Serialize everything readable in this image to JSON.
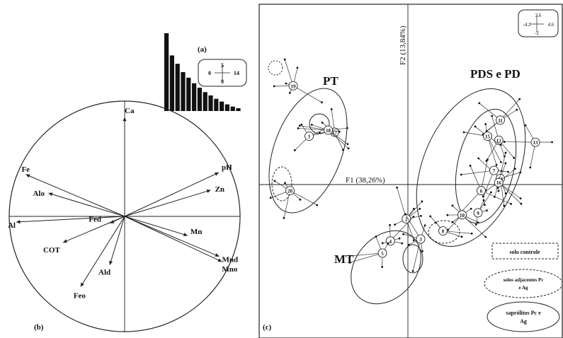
{
  "panel_a": {
    "label": "(a)",
    "scale_box": {
      "top": "5",
      "left": "0",
      "right": "14",
      "bottom": "0"
    }
  },
  "panel_b": {
    "label": "(b)",
    "variables": [
      {
        "name": "Ca",
        "angle_deg": 90,
        "length": 0.86
      },
      {
        "name": "Fe",
        "angle_deg": 157,
        "length": 0.93
      },
      {
        "name": "pH",
        "angle_deg": 25,
        "length": 0.9
      },
      {
        "name": "Alo",
        "angle_deg": 163,
        "length": 0.69
      },
      {
        "name": "Zn",
        "angle_deg": 17,
        "length": 0.78
      },
      {
        "name": "Al",
        "angle_deg": 183,
        "length": 0.94
      },
      {
        "name": "Fed",
        "angle_deg": 205,
        "length": 0.14
      },
      {
        "name": "COT",
        "angle_deg": 203,
        "length": 0.58
      },
      {
        "name": "Mn",
        "angle_deg": -17,
        "length": 0.57
      },
      {
        "name": "Mnd",
        "angle_deg": -23,
        "length": 0.89
      },
      {
        "name": "Mno",
        "angle_deg": -25,
        "length": 0.93
      },
      {
        "name": "Ald",
        "angle_deg": 253,
        "length": 0.44
      },
      {
        "name": "Feo",
        "angle_deg": 238,
        "length": 0.72
      }
    ]
  },
  "panel_c": {
    "label": "(c)",
    "axis_f1": "F1 (38,26%)",
    "axis_f2": "F2 (13,84%)",
    "scale_box": {
      "top": "3.6",
      "left": "-4.2",
      "right": "4.6",
      "bottom": "-2"
    },
    "groups": [
      "PT",
      "PDS e PD",
      "MT"
    ],
    "legend": {
      "control": "solo controle",
      "adjacent": "solos adjacentes Pc e Ag",
      "saprolite": "saprólitos Pc e Ag"
    },
    "sample_ids": [
      "1",
      "2",
      "3",
      "4",
      "5",
      "6",
      "7",
      "8",
      "9",
      "10",
      "11",
      "12",
      "13",
      "14",
      "15",
      "16",
      "17",
      "18",
      "19",
      "20"
    ]
  },
  "chart_data": [
    {
      "type": "bar",
      "title": "",
      "values": [
        14,
        10,
        8.5,
        7,
        6,
        5,
        4.2,
        3.4,
        2.8,
        2.2,
        1.7,
        1.2,
        0.8,
        0.5
      ],
      "ylim": [
        0,
        14
      ]
    },
    {
      "type": "scatter",
      "title": "",
      "xlabel": "F1 (38,26%)",
      "ylabel": "F2 (13,84%)",
      "xlim": [
        -4.2,
        4.6
      ],
      "ylim": [
        -2,
        3.6
      ],
      "points": [
        {
          "id": "1",
          "x": -3.1,
          "y": 1.2,
          "group": "PT"
        },
        {
          "id": "17",
          "x": -2.3,
          "y": 1.3,
          "group": "PT"
        },
        {
          "id": "18",
          "x": -2.5,
          "y": 1.35,
          "group": "PT"
        },
        {
          "id": "19",
          "x": -3.6,
          "y": 2.45,
          "group": "PT"
        },
        {
          "id": "20",
          "x": -3.7,
          "y": -0.15,
          "group": "PT"
        },
        {
          "id": "11",
          "x": 2.9,
          "y": 1.6,
          "group": "PDS e PD"
        },
        {
          "id": "12",
          "x": 2.85,
          "y": 1.1,
          "group": "PDS e PD"
        },
        {
          "id": "13",
          "x": 4.0,
          "y": 1.05,
          "group": "PDS e PD"
        },
        {
          "id": "14",
          "x": 2.9,
          "y": 0.15,
          "group": "PDS e PD"
        },
        {
          "id": "15",
          "x": 2.5,
          "y": 1.2,
          "group": "PDS e PD"
        },
        {
          "id": "16",
          "x": 2.85,
          "y": 0.05,
          "group": "PDS e PD"
        },
        {
          "id": "6",
          "x": 2.3,
          "y": -0.15,
          "group": "PDS e PD"
        },
        {
          "id": "7",
          "x": 2.7,
          "y": 0.35,
          "group": "PDS e PD"
        },
        {
          "id": "9",
          "x": 2.2,
          "y": -0.7,
          "group": "PDS e PD"
        },
        {
          "id": "10",
          "x": 1.7,
          "y": -0.75,
          "group": "PDS e PD"
        },
        {
          "id": "2",
          "x": -0.05,
          "y": -0.85,
          "group": "MT"
        },
        {
          "id": "3",
          "x": 0.4,
          "y": -1.35,
          "group": "MT"
        },
        {
          "id": "4",
          "x": -0.55,
          "y": -1.4,
          "group": "MT"
        },
        {
          "id": "5",
          "x": -0.8,
          "y": -1.7,
          "group": "MT"
        },
        {
          "id": "8",
          "x": 1.1,
          "y": -1.15,
          "group": "MT"
        }
      ]
    }
  ]
}
